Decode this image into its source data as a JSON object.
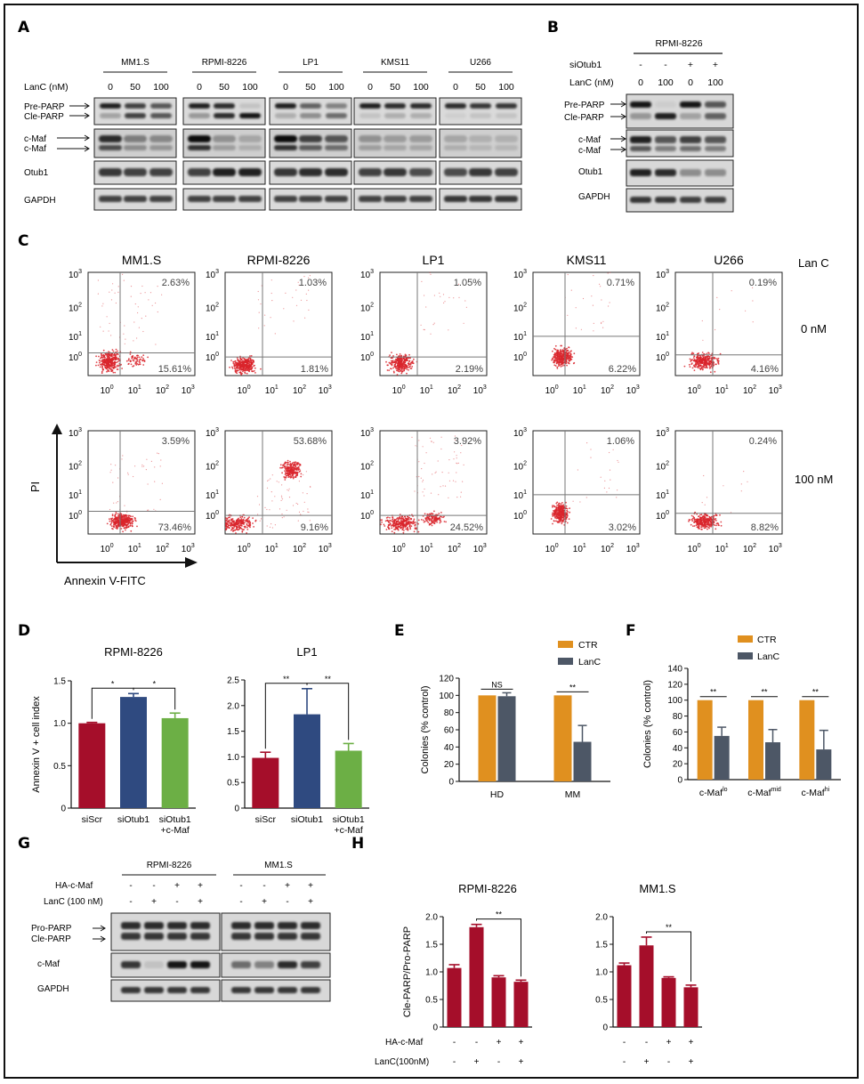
{
  "panel_labels": [
    "A",
    "B",
    "C",
    "D",
    "E",
    "F",
    "G",
    "H"
  ],
  "panelA": {
    "cell_lines": [
      "MM1.S",
      "RPMI-8226",
      "LP1",
      "KMS11",
      "U266"
    ],
    "treatment_label": "LanC (nM)",
    "doses": [
      "0",
      "50",
      "100"
    ],
    "rows": [
      "Pre-PARP",
      "Cle-PARP",
      "c-Maf",
      "c-Maf",
      "Otub1",
      "GAPDH"
    ]
  },
  "panelB": {
    "cell_line": "RPMI-8226",
    "siotub_label": "siOtub1",
    "siotub_values": [
      "-",
      "-",
      "+",
      "+"
    ],
    "lanc_label": "LanC (nM)",
    "lanc_values": [
      "0",
      "100",
      "0",
      "100"
    ],
    "rows": [
      "Pre-PARP",
      "Cle-PARP",
      "c-Maf",
      "c-Maf",
      "Otub1",
      "GAPDH"
    ]
  },
  "panelC": {
    "cell_lines": [
      "MM1.S",
      "RPMI-8226",
      "LP1",
      "KMS11",
      "U266"
    ],
    "treatment_title": "Lan C",
    "row_labels": [
      "0 nM",
      "100 nM"
    ],
    "ylabel": "PI",
    "xlabel": "Annexin V-FITC",
    "tick_base": "10",
    "tick_exps": [
      "0",
      "1",
      "2",
      "3"
    ],
    "upper_right": [
      [
        "2.63%",
        "1.03%",
        "1.05%",
        "0.71%",
        "0.19%"
      ],
      [
        "3.59%",
        "53.68%",
        "3.92%",
        "1.06%",
        "0.24%"
      ]
    ],
    "lower_right": [
      [
        "15.61%",
        "1.81%",
        "2.19%",
        "6.22%",
        "4.16%"
      ],
      [
        "73.46%",
        "9.16%",
        "24.52%",
        "3.02%",
        "8.82%"
      ]
    ]
  },
  "panelE_legend": [
    "CTR",
    "LanC"
  ],
  "panelF_legend": [
    "CTR",
    "LanC"
  ],
  "panelG": {
    "lines": [
      "RPMI-8226",
      "MM1.S"
    ],
    "ha_label": "HA-c-Maf",
    "ha_values": [
      "-",
      "-",
      "+",
      "+"
    ],
    "lanc_label": "LanC (100 nM)",
    "lanc_values": [
      "-",
      "+",
      "-",
      "+"
    ],
    "rows": [
      "Pro-PARP",
      "Cle-PARP",
      "c-Maf",
      "GAPDH"
    ]
  },
  "panelH_bottom": {
    "ha_label": "HA-c-Maf",
    "ha_values": [
      "-",
      "-",
      "+",
      "+"
    ],
    "lanc_label": "LanC(100nM)",
    "lanc_values": [
      "-",
      "+",
      "-",
      "+"
    ]
  },
  "colors": {
    "red": "#a50e2a",
    "blue": "#2f4a80",
    "green": "#6caf45",
    "orange": "#e0901f",
    "slate": "#4d5766",
    "dots": "#d9252b"
  },
  "chart_data": [
    {
      "id": "D1",
      "type": "bar",
      "title": "RPMI-8226",
      "ylabel": "Annexin V + cell index",
      "categories": [
        "siScr",
        "siOtub1",
        "siOtub1\n+c-Maf"
      ],
      "values": [
        1.0,
        1.31,
        1.06
      ],
      "errors": [
        0.01,
        0.04,
        0.06
      ],
      "ylim": [
        0,
        1.5
      ],
      "yticks": [
        0,
        0.5,
        1.0,
        1.5
      ],
      "ytick_labels": [
        "0",
        "0.5",
        "1.0",
        "1.5"
      ],
      "colors": [
        "#a50e2a",
        "#2f4a80",
        "#6caf45"
      ],
      "sig": [
        {
          "from": 0,
          "to": 1,
          "label": "*"
        },
        {
          "from": 1,
          "to": 2,
          "label": "*"
        }
      ]
    },
    {
      "id": "D2",
      "type": "bar",
      "title": "LP1",
      "ylabel": "",
      "categories": [
        "siScr",
        "siOtub1",
        "siOtub1\n+c-Maf"
      ],
      "values": [
        0.98,
        1.83,
        1.12
      ],
      "errors": [
        0.11,
        0.5,
        0.14
      ],
      "ylim": [
        0,
        2.5
      ],
      "yticks": [
        0,
        0.5,
        1.0,
        1.5,
        2.0,
        2.5
      ],
      "ytick_labels": [
        "0",
        "0.5",
        "1.0",
        "1.5",
        "2.0",
        "2.5"
      ],
      "colors": [
        "#a50e2a",
        "#2f4a80",
        "#6caf45"
      ],
      "sig": [
        {
          "from": 0,
          "to": 1,
          "label": "**"
        },
        {
          "from": 1,
          "to": 2,
          "label": "**"
        }
      ]
    },
    {
      "id": "E",
      "type": "bar",
      "title": "",
      "ylabel": "Colonies (% control)",
      "categories": [
        "HD",
        "MM"
      ],
      "series": [
        {
          "name": "CTR",
          "values": [
            100,
            100
          ],
          "errors": [
            0,
            0
          ]
        },
        {
          "name": "LanC",
          "values": [
            99,
            46
          ],
          "errors": [
            4,
            19
          ]
        }
      ],
      "ylim": [
        0,
        120
      ],
      "yticks": [
        0,
        20,
        40,
        60,
        80,
        100,
        120
      ],
      "ytick_labels": [
        "0",
        "20",
        "40",
        "60",
        "80",
        "100",
        "120"
      ],
      "colors": [
        "#e0901f",
        "#4d5766"
      ],
      "sig": [
        {
          "group": 0,
          "label": "NS"
        },
        {
          "group": 1,
          "label": "**"
        }
      ]
    },
    {
      "id": "F",
      "type": "bar",
      "title": "",
      "ylabel": "Colonies (% control)",
      "categories": [
        "c-Maf^lo",
        "c-Maf^mid",
        "c-Maf^hi"
      ],
      "series": [
        {
          "name": "CTR",
          "values": [
            100,
            100,
            100
          ],
          "errors": [
            0,
            0,
            0
          ]
        },
        {
          "name": "LanC",
          "values": [
            55,
            47,
            38
          ],
          "errors": [
            11,
            16,
            24
          ]
        }
      ],
      "ylim": [
        0,
        140
      ],
      "yticks": [
        0,
        20,
        40,
        60,
        80,
        100,
        120,
        140
      ],
      "ytick_labels": [
        "0",
        "20",
        "40",
        "60",
        "80",
        "100",
        "120",
        "140"
      ],
      "colors": [
        "#e0901f",
        "#4d5766"
      ],
      "sig": [
        {
          "group": 0,
          "label": "**"
        },
        {
          "group": 1,
          "label": "**"
        },
        {
          "group": 2,
          "label": "**"
        }
      ]
    },
    {
      "id": "H1",
      "type": "bar",
      "title": "RPMI-8226",
      "ylabel": "Cle-PARP/Pro-PARP",
      "categories": [
        "1",
        "2",
        "3",
        "4"
      ],
      "values": [
        1.07,
        1.81,
        0.9,
        0.82
      ],
      "errors": [
        0.06,
        0.05,
        0.03,
        0.03
      ],
      "ylim": [
        0,
        2.0
      ],
      "yticks": [
        0,
        0.5,
        1.0,
        1.5,
        2.0
      ],
      "ytick_labels": [
        "0",
        "0.5",
        "1.0",
        "1.5",
        "2.0"
      ],
      "colors": [
        "#a50e2a",
        "#a50e2a",
        "#a50e2a",
        "#a50e2a"
      ],
      "sig": [
        {
          "from": 1,
          "to": 3,
          "label": "**"
        }
      ]
    },
    {
      "id": "H2",
      "type": "bar",
      "title": "MM1.S",
      "ylabel": "",
      "categories": [
        "1",
        "2",
        "3",
        "4"
      ],
      "values": [
        1.12,
        1.48,
        0.89,
        0.72
      ],
      "errors": [
        0.04,
        0.15,
        0.02,
        0.04
      ],
      "ylim": [
        0,
        2.0
      ],
      "yticks": [
        0,
        0.5,
        1.0,
        1.5,
        2.0
      ],
      "ytick_labels": [
        "0",
        "0.5",
        "1.0",
        "1.5",
        "2.0"
      ],
      "colors": [
        "#a50e2a",
        "#a50e2a",
        "#a50e2a",
        "#a50e2a"
      ],
      "sig": [
        {
          "from": 1,
          "to": 3,
          "label": "**"
        }
      ]
    }
  ]
}
